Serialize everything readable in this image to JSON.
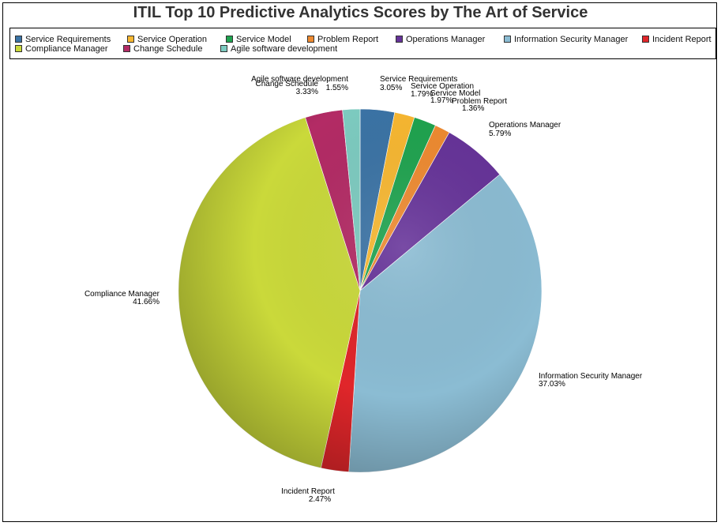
{
  "chart_data": {
    "type": "pie",
    "title": "ITIL Top 10 Predictive Analytics Scores by The Art of Service",
    "legend_position": "top",
    "slices": [
      {
        "name": "Service Requirements",
        "value": 3.05,
        "label": "3.05%",
        "color": "#3b73a5"
      },
      {
        "name": "Service Operation",
        "value": 1.79,
        "label": "1.79%",
        "color": "#f7b731"
      },
      {
        "name": "Service Model",
        "value": 1.97,
        "label": "1.97%",
        "color": "#1fa34f"
      },
      {
        "name": "Problem Report",
        "value": 1.36,
        "label": "1.36%",
        "color": "#ee8a30"
      },
      {
        "name": "Operations Manager",
        "value": 5.79,
        "label": "5.79%",
        "color": "#663399"
      },
      {
        "name": "Information Security Manager",
        "value": 37.03,
        "label": "37.03%",
        "color": "#8bbcd3"
      },
      {
        "name": "Incident Report",
        "value": 2.47,
        "label": "2.47%",
        "color": "#e0262a"
      },
      {
        "name": "Compliance Manager",
        "value": 41.66,
        "label": "41.66%",
        "color": "#cad93a"
      },
      {
        "name": "Change Schedule",
        "value": 3.33,
        "label": "3.33%",
        "color": "#b32b65"
      },
      {
        "name": "Agile software development",
        "value": 1.55,
        "label": "1.55%",
        "color": "#7dcbc0"
      }
    ]
  }
}
